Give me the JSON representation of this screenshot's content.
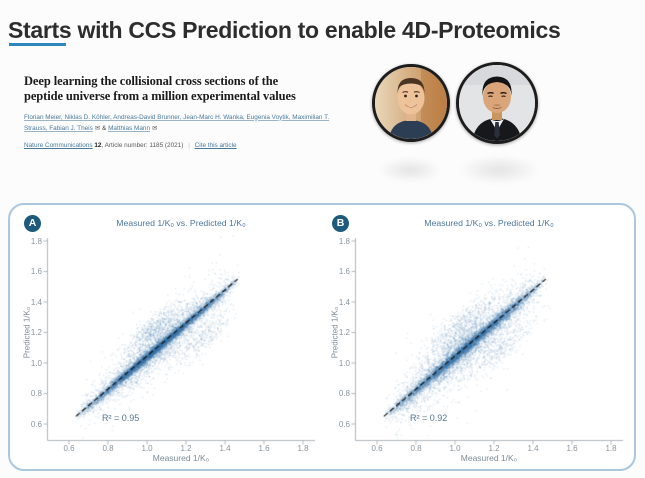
{
  "page": {
    "title": "Starts with CCS Prediction to enable 4D-Proteomics",
    "accent_color": "#2e86c1"
  },
  "paper": {
    "title": "Deep learning the collisional cross sections of the peptide universe from a million experimental values",
    "title_line1": "Deep learning the collisional cross sections of the",
    "title_line2": "peptide universe from a million experimental values",
    "authors_line1": "Florian Meier, Niklas D. Köhler, Andreas-David Brunner, Jean-Marc H. Wanka, Eugenia Voytik, Maximilian T.",
    "authors_line2_pre": "Strauss, Fabian J. Theis",
    "envelope_icon": "✉",
    "authors_joiner": " & ",
    "last_author": "Matthias Mann",
    "journal": "Nature Communications",
    "volume": "12",
    "article_info": ", Article number: 1185 (2021)",
    "meta_divider": "|",
    "cite_link": "Cite this article"
  },
  "figure": {
    "panel_border_color": "#aac7dd",
    "badge_color": "#1d5a7d",
    "scatter_point_color": "#346fa9"
  },
  "chart_data": [
    {
      "type": "scatter",
      "panel_label": "A",
      "title": "Measured 1/K₀ vs. Predicted 1/K₀",
      "xlabel": "Measured 1/K₀",
      "ylabel": "Predicted 1/K₀",
      "xlim": [
        0.49,
        1.91
      ],
      "ylim": [
        0.49,
        1.91
      ],
      "xticks": [
        0.6,
        0.8,
        1.0,
        1.2,
        1.4,
        1.6,
        1.8
      ],
      "yticks": [
        0.6,
        0.8,
        1.0,
        1.2,
        1.4,
        1.6,
        1.8
      ],
      "grid": false,
      "annotation": "R² = 0.95",
      "r_squared": 0.95,
      "fit_line": {
        "x": [
          0.635,
          1.465
        ],
        "y": [
          0.65,
          1.55
        ],
        "style": "dashed",
        "color": "#111111"
      },
      "points_summary": "~100k peptide ions form a dense band along y≈x from (0.65,0.65) to (1.45,1.55); sparse secondary cloud offset ~+0.2 above the diagonal near x=0.95–1.15 and a faint cloud ~-0.12 below near x=1.2–1.4",
      "scatter_model": {
        "seed": 42,
        "n_band": 9500,
        "x_range": [
          0.63,
          1.47
        ],
        "band_sd": 0.016,
        "halo_sd": 0.055,
        "halo_fraction": 0.28,
        "outlier_sd": 0.13,
        "outlier_fraction": 0.05,
        "clusters": [
          {
            "cx": 1.03,
            "dy": 0.2,
            "sx": 0.08,
            "sy": 0.045,
            "n": 550
          },
          {
            "cx": 1.28,
            "dy": -0.12,
            "sx": 0.08,
            "sy": 0.05,
            "n": 300
          }
        ],
        "color": "#346fa9"
      }
    },
    {
      "type": "scatter",
      "panel_label": "B",
      "title": "Measured 1/K₀ vs. Predicted 1/K₀",
      "xlabel": "Measured 1/K₀",
      "ylabel": "Predicted 1/K₀",
      "xlim": [
        0.49,
        1.91
      ],
      "ylim": [
        0.49,
        1.91
      ],
      "xticks": [
        0.6,
        0.8,
        1.0,
        1.2,
        1.4,
        1.6,
        1.8
      ],
      "yticks": [
        0.6,
        0.8,
        1.0,
        1.2,
        1.4,
        1.6,
        1.8
      ],
      "grid": false,
      "annotation": "R² = 0.92",
      "r_squared": 0.92,
      "fit_line": {
        "x": [
          0.635,
          1.465
        ],
        "y": [
          0.65,
          1.55
        ],
        "style": "dashed",
        "color": "#111111"
      },
      "points_summary": "same measured-vs-predicted band as panel A but broader scatter (lower correlation); secondary cloud ~+0.22 above diagonal near x=0.9–1.15 and faint cloud ~-0.13 below near x=1.1–1.35",
      "scatter_model": {
        "seed": 1337,
        "n_band": 9500,
        "x_range": [
          0.63,
          1.47
        ],
        "band_sd": 0.02,
        "halo_sd": 0.065,
        "halo_fraction": 0.32,
        "outlier_sd": 0.14,
        "outlier_fraction": 0.06,
        "clusters": [
          {
            "cx": 1.02,
            "dy": 0.22,
            "sx": 0.09,
            "sy": 0.05,
            "n": 520
          },
          {
            "cx": 1.22,
            "dy": -0.13,
            "sx": 0.09,
            "sy": 0.05,
            "n": 340
          }
        ],
        "color": "#346fa9"
      }
    }
  ]
}
